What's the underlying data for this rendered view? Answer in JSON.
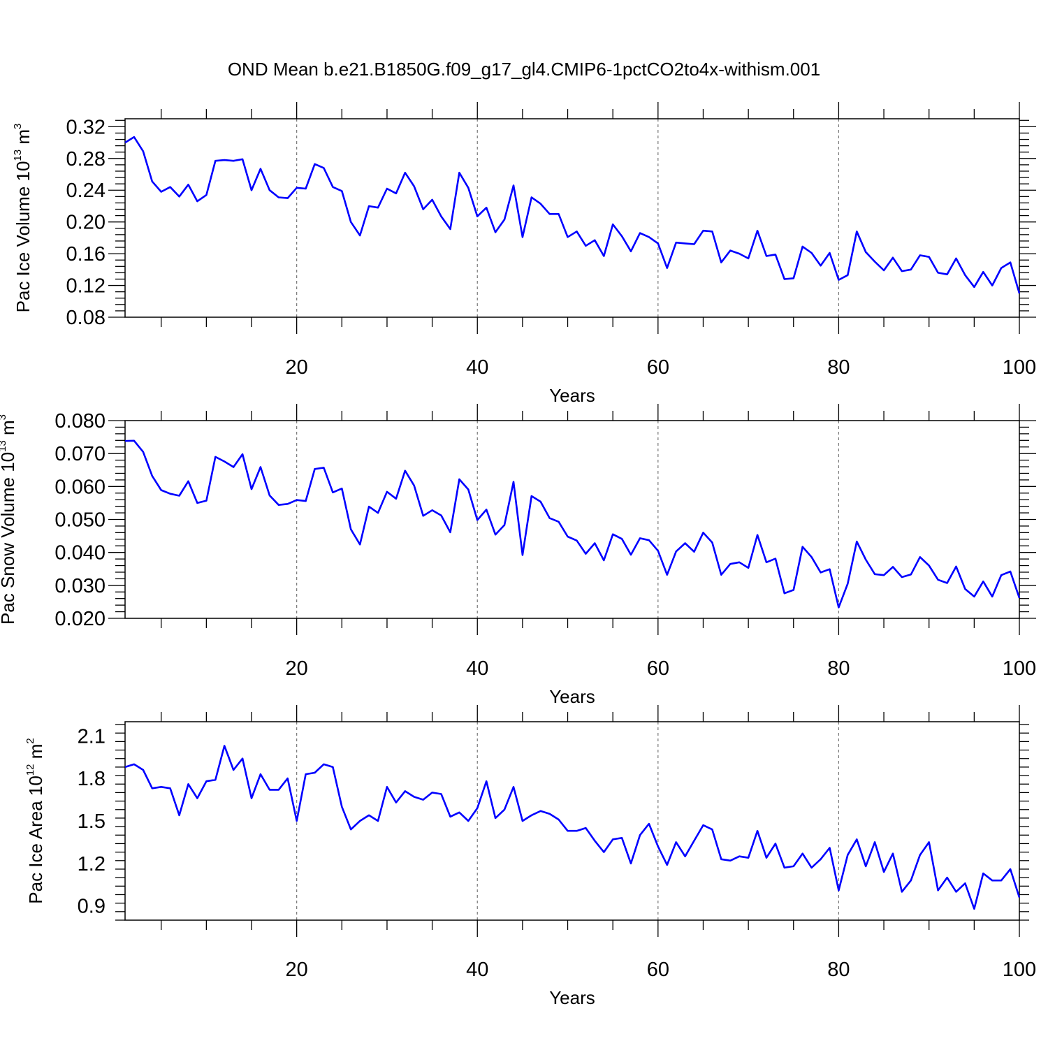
{
  "figure": {
    "title": "OND Mean b.e21.B1850G.f09_g17_gl4.CMIP6-1pctCO2to4x-withism.001",
    "line_color": "#0000ff"
  },
  "chart_data": [
    {
      "type": "line",
      "ylabel": "Pac Ice Volume 10",
      "ylabel_exp": "13",
      "ylabel_unit": " m",
      "ylabel_unit_exp": "3",
      "xlabel": "Years",
      "xlim": [
        1,
        100
      ],
      "ylim": [
        0.08,
        0.33
      ],
      "xticks": [
        20,
        40,
        60,
        80,
        100
      ],
      "xtick_labels": [
        "20",
        "40",
        "60",
        "80",
        "100"
      ],
      "yticks": [
        0.08,
        0.12,
        0.16,
        0.2,
        0.24,
        0.28,
        0.32
      ],
      "ytick_labels": [
        "0.08",
        "0.12",
        "0.16",
        "0.20",
        "0.24",
        "0.28",
        "0.32"
      ],
      "grid": "dashed vertical at major x ticks",
      "series": [
        {
          "name": "Pac Ice Volume",
          "x_start": 1,
          "values": [
            0.3,
            0.307,
            0.289,
            0.251,
            0.238,
            0.244,
            0.232,
            0.247,
            0.226,
            0.234,
            0.277,
            0.278,
            0.277,
            0.279,
            0.24,
            0.267,
            0.24,
            0.231,
            0.23,
            0.243,
            0.242,
            0.273,
            0.268,
            0.244,
            0.239,
            0.2,
            0.183,
            0.22,
            0.218,
            0.242,
            0.236,
            0.262,
            0.245,
            0.216,
            0.228,
            0.207,
            0.191,
            0.262,
            0.243,
            0.207,
            0.218,
            0.187,
            0.203,
            0.246,
            0.181,
            0.231,
            0.223,
            0.21,
            0.21,
            0.181,
            0.188,
            0.17,
            0.177,
            0.157,
            0.197,
            0.182,
            0.163,
            0.186,
            0.181,
            0.173,
            0.142,
            0.174,
            0.173,
            0.172,
            0.189,
            0.188,
            0.149,
            0.164,
            0.16,
            0.154,
            0.189,
            0.157,
            0.159,
            0.128,
            0.129,
            0.169,
            0.161,
            0.145,
            0.161,
            0.127,
            0.133,
            0.188,
            0.162,
            0.15,
            0.139,
            0.155,
            0.138,
            0.14,
            0.158,
            0.156,
            0.136,
            0.134,
            0.154,
            0.133,
            0.118,
            0.137,
            0.12,
            0.142,
            0.149,
            0.11
          ]
        }
      ]
    },
    {
      "type": "line",
      "ylabel": "Pac Snow Volume 10",
      "ylabel_exp": "13",
      "ylabel_unit": " m",
      "ylabel_unit_exp": "3",
      "xlabel": "Years",
      "xlim": [
        1,
        100
      ],
      "ylim": [
        0.02,
        0.08
      ],
      "xticks": [
        20,
        40,
        60,
        80,
        100
      ],
      "xtick_labels": [
        "20",
        "40",
        "60",
        "80",
        "100"
      ],
      "yticks": [
        0.02,
        0.03,
        0.04,
        0.05,
        0.06,
        0.07,
        0.08
      ],
      "ytick_labels": [
        "0.020",
        "0.030",
        "0.040",
        "0.050",
        "0.060",
        "0.070",
        "0.080"
      ],
      "grid": "dashed vertical at major x ticks",
      "series": [
        {
          "name": "Pac Snow Volume",
          "x_start": 1,
          "values": [
            0.0738,
            0.0739,
            0.0705,
            0.0632,
            0.0589,
            0.0578,
            0.0572,
            0.0616,
            0.055,
            0.0557,
            0.069,
            0.0676,
            0.0659,
            0.0698,
            0.0592,
            0.0659,
            0.0573,
            0.0544,
            0.0547,
            0.0559,
            0.0556,
            0.0653,
            0.0657,
            0.0582,
            0.0594,
            0.047,
            0.0424,
            0.0539,
            0.052,
            0.0584,
            0.0563,
            0.0648,
            0.0603,
            0.0511,
            0.0528,
            0.0512,
            0.0461,
            0.0622,
            0.0591,
            0.0498,
            0.053,
            0.0454,
            0.0483,
            0.0614,
            0.0392,
            0.0571,
            0.0554,
            0.0504,
            0.0493,
            0.0448,
            0.0436,
            0.0396,
            0.0428,
            0.0376,
            0.0455,
            0.0441,
            0.0393,
            0.0443,
            0.0437,
            0.0405,
            0.0332,
            0.0403,
            0.0428,
            0.0402,
            0.046,
            0.043,
            0.0332,
            0.0365,
            0.037,
            0.0353,
            0.0453,
            0.037,
            0.0381,
            0.0276,
            0.0286,
            0.0417,
            0.0386,
            0.0339,
            0.0349,
            0.0233,
            0.0305,
            0.0433,
            0.0378,
            0.0334,
            0.0331,
            0.0356,
            0.0325,
            0.0333,
            0.0386,
            0.036,
            0.0317,
            0.0307,
            0.0357,
            0.0289,
            0.0266,
            0.0312,
            0.0266,
            0.0331,
            0.0342,
            0.0262
          ]
        }
      ]
    },
    {
      "type": "line",
      "ylabel": "Pac Ice Area 10",
      "ylabel_exp": "12",
      "ylabel_unit": " m",
      "ylabel_unit_exp": "2",
      "xlabel": "Years",
      "xlim": [
        1,
        100
      ],
      "ylim": [
        0.8,
        2.2
      ],
      "xticks": [
        20,
        40,
        60,
        80,
        100
      ],
      "xtick_labels": [
        "20",
        "40",
        "60",
        "80",
        "100"
      ],
      "yticks": [
        0.9,
        1.2,
        1.5,
        1.8,
        2.1
      ],
      "ytick_labels": [
        "0.9",
        "1.2",
        "1.5",
        "1.8",
        "2.1"
      ],
      "grid": "dashed vertical at major x ticks",
      "series": [
        {
          "name": "Pac Ice Area",
          "x_start": 1,
          "values": [
            1.88,
            1.9,
            1.86,
            1.73,
            1.74,
            1.73,
            1.54,
            1.76,
            1.66,
            1.78,
            1.79,
            2.03,
            1.86,
            1.94,
            1.66,
            1.83,
            1.72,
            1.72,
            1.8,
            1.5,
            1.83,
            1.84,
            1.9,
            1.88,
            1.6,
            1.44,
            1.5,
            1.54,
            1.5,
            1.74,
            1.63,
            1.71,
            1.67,
            1.65,
            1.7,
            1.69,
            1.53,
            1.56,
            1.5,
            1.59,
            1.78,
            1.52,
            1.58,
            1.74,
            1.5,
            1.54,
            1.57,
            1.55,
            1.51,
            1.43,
            1.43,
            1.45,
            1.36,
            1.28,
            1.37,
            1.38,
            1.2,
            1.4,
            1.48,
            1.32,
            1.19,
            1.35,
            1.25,
            1.36,
            1.47,
            1.44,
            1.23,
            1.22,
            1.25,
            1.24,
            1.43,
            1.24,
            1.34,
            1.17,
            1.18,
            1.27,
            1.17,
            1.23,
            1.31,
            1.01,
            1.26,
            1.37,
            1.18,
            1.35,
            1.14,
            1.27,
            1.0,
            1.08,
            1.26,
            1.35,
            1.01,
            1.1,
            1.0,
            1.06,
            0.88,
            1.13,
            1.08,
            1.08,
            1.16,
            0.96
          ]
        }
      ]
    }
  ]
}
